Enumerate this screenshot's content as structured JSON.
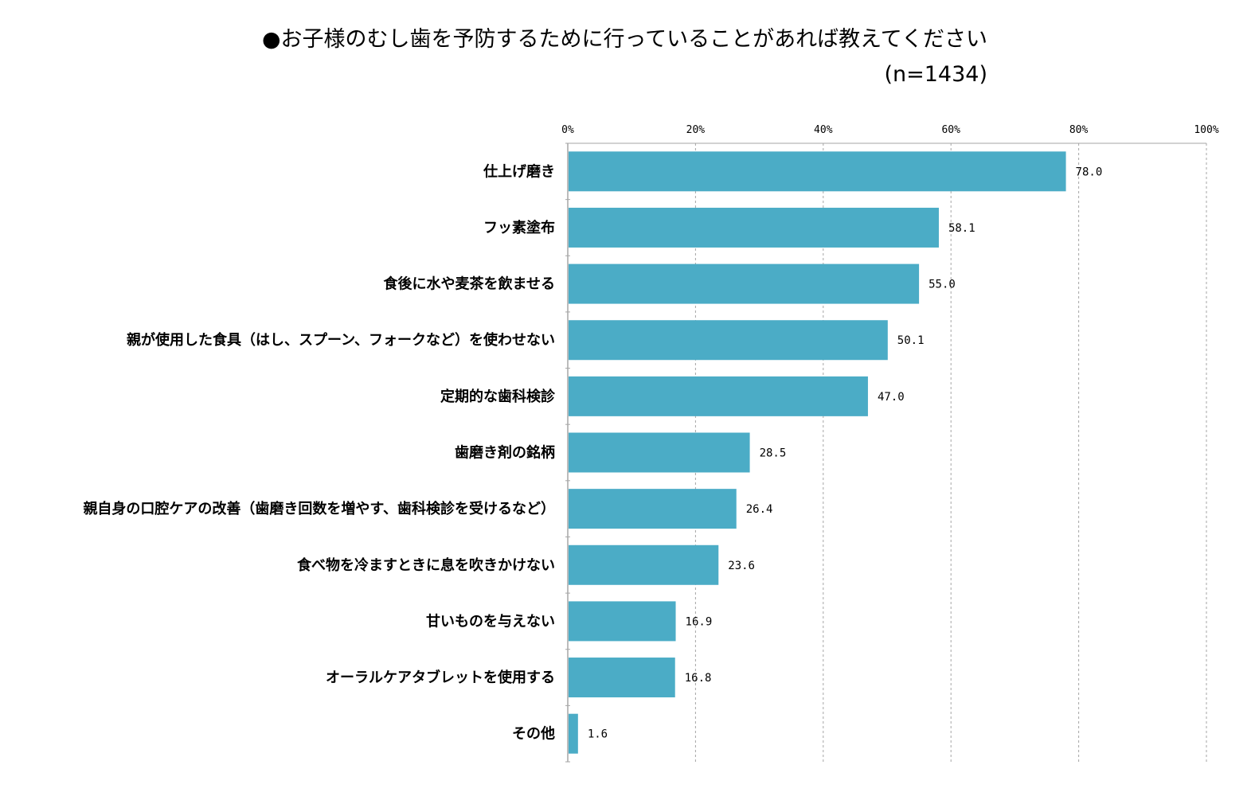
{
  "chart_data": {
    "type": "bar",
    "orientation": "horizontal",
    "title": "●お子様のむし歯を予防するために行っていることがあれば教えてください",
    "subtitle": "(n=1434)",
    "categories": [
      "仕上げ磨き",
      "フッ素塗布",
      "食後に水や麦茶を飲ませる",
      "親が使用した食具（はし、スプーン、フォークなど）を使わせない",
      "定期的な歯科検診",
      "歯磨き剤の銘柄",
      "親自身の口腔ケアの改善（歯磨き回数を増やす、歯科検診を受けるなど）",
      "食べ物を冷ますときに息を吹きかけない",
      "甘いものを与えない",
      "オーラルケアタブレットを使用する",
      "その他"
    ],
    "values": [
      78.0,
      58.1,
      55.0,
      50.1,
      47.0,
      28.5,
      26.4,
      23.6,
      16.9,
      16.8,
      1.6
    ],
    "value_labels": [
      "78.0",
      "58.1",
      "55.0",
      "50.1",
      "47.0",
      "28.5",
      "26.4",
      "23.6",
      "16.9",
      "16.8",
      "1.6"
    ],
    "xlim": [
      0,
      100
    ],
    "x_ticks": [
      0,
      20,
      40,
      60,
      80,
      100
    ],
    "x_tick_labels": [
      "0%",
      "20%",
      "40%",
      "60%",
      "80%",
      "100%"
    ],
    "grid": true,
    "bar_color": "#4BACC6",
    "grid_color": "#A6A6A6",
    "axis_color": "#A6A6A6"
  }
}
